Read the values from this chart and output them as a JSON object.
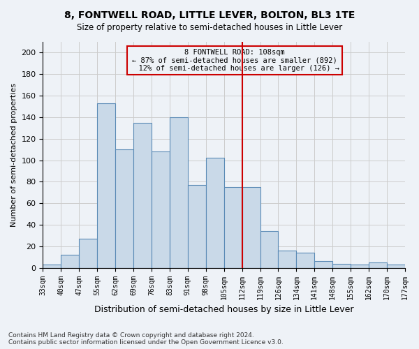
{
  "title_line1": "8, FONTWELL ROAD, LITTLE LEVER, BOLTON, BL3 1TE",
  "title_line2": "Size of property relative to semi-detached houses in Little Lever",
  "xlabel": "Distribution of semi-detached houses by size in Little Lever",
  "ylabel": "Number of semi-detached properties",
  "footnote": "Contains HM Land Registry data © Crown copyright and database right 2024.\nContains public sector information licensed under the Open Government Licence v3.0.",
  "bin_labels": [
    "33sqm",
    "40sqm",
    "47sqm",
    "55sqm",
    "62sqm",
    "69sqm",
    "76sqm",
    "83sqm",
    "91sqm",
    "98sqm",
    "105sqm",
    "112sqm",
    "119sqm",
    "126sqm",
    "134sqm",
    "141sqm",
    "148sqm",
    "155sqm",
    "162sqm",
    "170sqm",
    "177sqm"
  ],
  "bar_values": [
    3,
    12,
    27,
    153,
    110,
    135,
    108,
    140,
    77,
    102,
    75,
    75,
    34,
    16,
    14,
    6,
    4,
    3,
    5,
    3
  ],
  "bar_color": "#c9d9e8",
  "bar_edge_color": "#5a8ab5",
  "pct_smaller": 87,
  "count_smaller": 892,
  "pct_larger": 12,
  "count_larger": 126,
  "vline_color": "#cc0000",
  "box_edge_color": "#cc0000",
  "grid_color": "#cccccc",
  "bg_color": "#eef2f7",
  "ylim": [
    0,
    210
  ],
  "yticks": [
    0,
    20,
    40,
    60,
    80,
    100,
    120,
    140,
    160,
    180,
    200
  ]
}
